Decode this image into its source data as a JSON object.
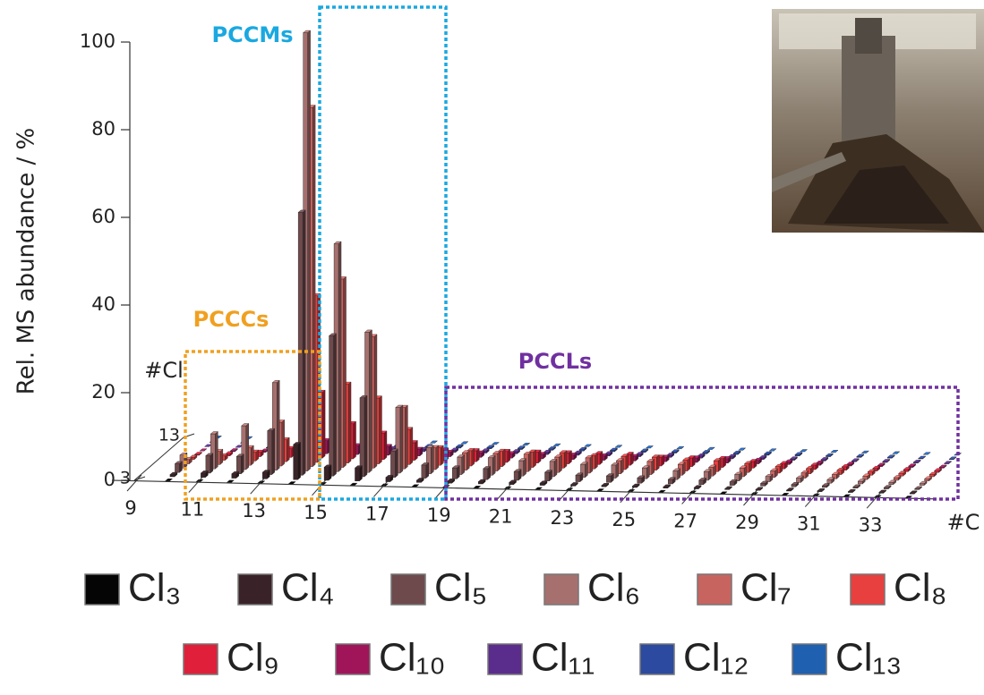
{
  "chart_data": {
    "type": "bar3d",
    "y_label": "Rel. MS abundance / %",
    "x_label": "#C",
    "z_label": "#Cl",
    "x": [
      10,
      11,
      12,
      13,
      14,
      15,
      16,
      17,
      18,
      19,
      20,
      21,
      22,
      23,
      24,
      25,
      26,
      27,
      28,
      29,
      30,
      31,
      32,
      33,
      34
    ],
    "xlim": [
      9,
      35
    ],
    "xticks": [
      9,
      11,
      13,
      15,
      17,
      19,
      21,
      23,
      25,
      27,
      29,
      31,
      33
    ],
    "ylim": [
      0,
      100
    ],
    "yticks": [
      0,
      20,
      40,
      60,
      80,
      100
    ],
    "zlim": [
      3,
      13
    ],
    "zticks": [
      3,
      13
    ],
    "series": [
      {
        "name": "Cl₃",
        "z": 3,
        "color": "#050505",
        "values": [
          0,
          0,
          0,
          0,
          0,
          0,
          0,
          0,
          0,
          0,
          0,
          0,
          0,
          0,
          0,
          0,
          0,
          0,
          0,
          0,
          0,
          0,
          0,
          0,
          0
        ]
      },
      {
        "name": "Cl₄",
        "z": 4,
        "color": "#3a2328",
        "values": [
          0.5,
          1,
          1,
          1.5,
          8,
          3,
          3,
          1,
          0.5,
          0.5,
          0.5,
          0.5,
          0.5,
          0.3,
          0.3,
          0.3,
          0.3,
          0.3,
          0.2,
          0.2,
          0.2,
          0.2,
          0.2,
          0.2,
          0.2
        ]
      },
      {
        "name": "Cl₅",
        "z": 5,
        "color": "#6e4a4c",
        "values": [
          2,
          4,
          4,
          10,
          60,
          32,
          18,
          6,
          3,
          2.5,
          2.5,
          2,
          2,
          1.5,
          1.5,
          1.2,
          1,
          1,
          0.8,
          0.6,
          0.5,
          0.4,
          0.3,
          0.3,
          0.2
        ]
      },
      {
        "name": "Cl₆",
        "z": 6,
        "color": "#a6706e",
        "values": [
          3,
          8,
          10,
          20,
          100,
          52,
          32,
          15,
          6,
          4,
          4,
          3.5,
          3.5,
          3,
          3,
          2.5,
          2,
          2,
          1.5,
          1.2,
          1,
          0.8,
          0.6,
          0.5,
          0.4
        ]
      },
      {
        "name": "Cl₇",
        "z": 7,
        "color": "#c86460",
        "values": [
          1,
          3,
          4,
          10,
          82,
          43,
          30,
          14,
          5,
          4,
          4,
          4,
          3.5,
          3.5,
          3,
          3,
          2.5,
          2,
          2,
          1.5,
          1.2,
          1,
          0.8,
          0.6,
          0.5
        ]
      },
      {
        "name": "Cl₈",
        "z": 8,
        "color": "#e8403f",
        "values": [
          0.5,
          1,
          2,
          5,
          38,
          18,
          15,
          8,
          4,
          3.5,
          3.5,
          3.5,
          3.5,
          3,
          3,
          3,
          2.5,
          2.5,
          2,
          1.5,
          1.2,
          1,
          0.8,
          0.6,
          0.5
        ]
      },
      {
        "name": "Cl₉",
        "z": 9,
        "color": "#e0203a",
        "values": [
          0.2,
          0.5,
          1,
          2,
          15,
          8,
          6,
          4,
          2.5,
          2.5,
          2.5,
          2.5,
          2.5,
          2.5,
          2.5,
          2,
          2,
          2,
          1.5,
          1.2,
          1,
          0.8,
          0.6,
          0.5,
          0.4
        ]
      },
      {
        "name": "Cl₁₀",
        "z": 10,
        "color": "#a0155a",
        "values": [
          0,
          0.2,
          0.3,
          0.5,
          3,
          2,
          2,
          1.5,
          1,
          1,
          1,
          1,
          1,
          1,
          1,
          1,
          1,
          1,
          0.8,
          0.6,
          0.5,
          0.4,
          0.3,
          0.3,
          0.2
        ]
      },
      {
        "name": "Cl₁₁",
        "z": 11,
        "color": "#5a2d8c",
        "values": [
          0,
          0,
          0.1,
          0.2,
          1,
          1,
          0.5,
          0.5,
          0.5,
          0.5,
          0.5,
          0.5,
          0.5,
          0.5,
          0.5,
          0.5,
          0.5,
          0.5,
          0.4,
          0.3,
          0.3,
          0.2,
          0.2,
          0.2,
          0.1
        ]
      },
      {
        "name": "Cl₁₂",
        "z": 12,
        "color": "#2b4aa0",
        "values": [
          0,
          0,
          0,
          0,
          0.3,
          0.3,
          0.2,
          0.2,
          0.3,
          0.3,
          0.3,
          0.3,
          0.3,
          0.3,
          0.3,
          0.3,
          0.3,
          0.3,
          0.3,
          0.3,
          0.2,
          0.2,
          0.2,
          0.1,
          0.1
        ]
      },
      {
        "name": "Cl₁₃",
        "z": 13,
        "color": "#2060b0",
        "values": [
          0,
          0,
          0,
          0,
          0,
          0,
          0,
          0,
          0,
          0,
          0,
          0,
          0,
          0,
          0,
          0,
          0,
          0,
          0,
          0,
          0,
          0,
          0,
          0,
          0
        ]
      }
    ],
    "annotations": [
      {
        "text": "PCCMs",
        "color": "#1aa8e0"
      },
      {
        "text": "PCCCs",
        "color": "#f0a020"
      },
      {
        "text": "PCCLs",
        "color": "#7030a0"
      }
    ]
  }
}
